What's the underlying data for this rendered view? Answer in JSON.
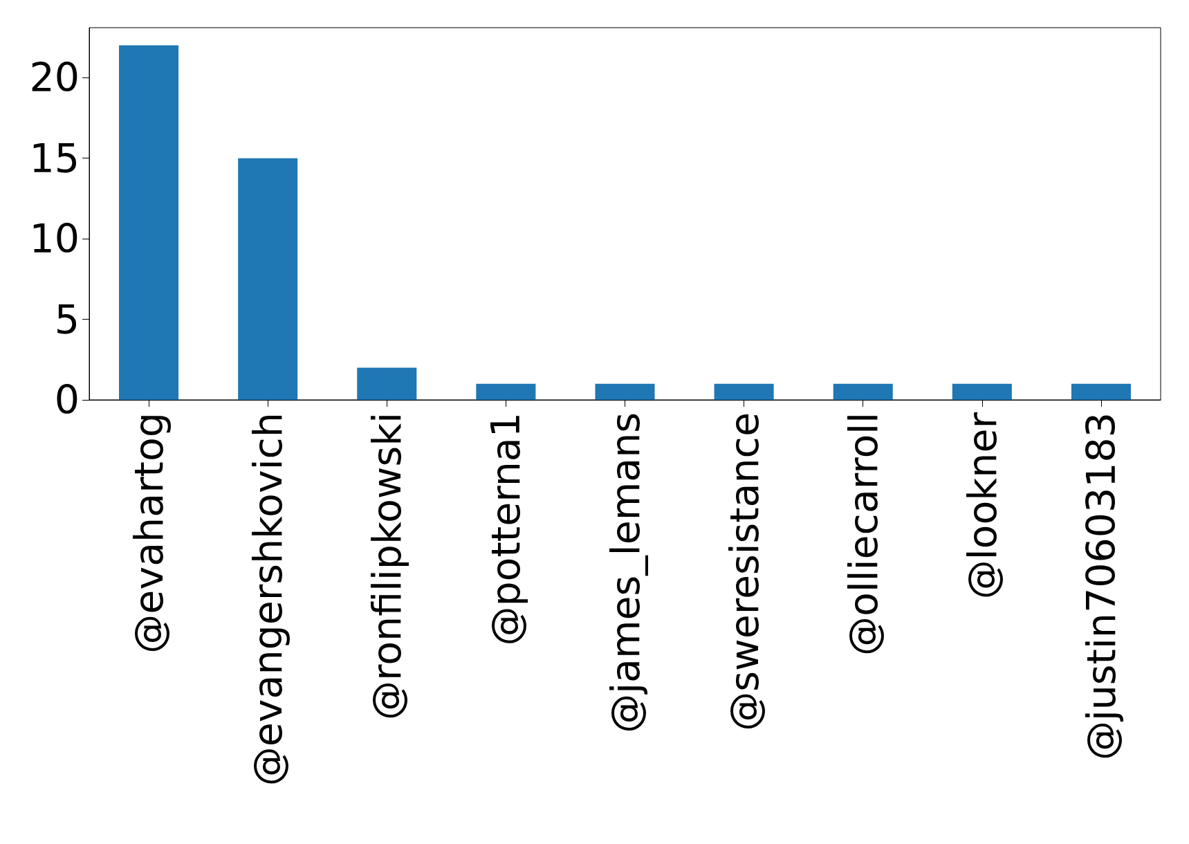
{
  "chart_data": {
    "type": "bar",
    "categories": [
      "@evahartog",
      "@evangershkovich",
      "@ronfilipkowski",
      "@potterna1",
      "@james_lemans",
      "@sweresistance",
      "@olliecarroll",
      "@lookner",
      "@justin70603183"
    ],
    "values": [
      22,
      15,
      2,
      1,
      1,
      1,
      1,
      1,
      1
    ],
    "color": "#1f77b4",
    "ylim": [
      0,
      23.1
    ],
    "yticks": [
      0,
      5,
      10,
      15,
      20
    ],
    "grid": false
  }
}
